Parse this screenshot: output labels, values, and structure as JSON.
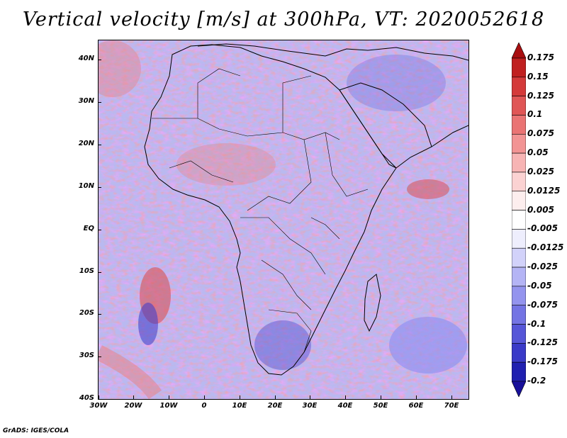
{
  "title": "Vertical velocity [m/s] at 300hPa, VT: 2020052618",
  "footer": "GrADS: IGES/COLA",
  "latitude_labels": [
    "40N",
    "30N",
    "20N",
    "10N",
    "EQ",
    "10S",
    "20S",
    "30S",
    "40S"
  ],
  "longitude_labels": [
    "30W",
    "20W",
    "10W",
    "0",
    "10E",
    "20E",
    "30E",
    "40E",
    "50E",
    "60E",
    "70E"
  ],
  "colorbar": {
    "levels": [
      "0.175",
      "0.15",
      "0.125",
      "0.1",
      "0.075",
      "0.05",
      "0.025",
      "0.0125",
      "0.005",
      "-0.005",
      "-0.0125",
      "-0.025",
      "-0.05",
      "-0.075",
      "-0.1",
      "-0.125",
      "-0.175",
      "-0.2"
    ],
    "colors": [
      "#a80e10",
      "#c02020",
      "#d43a3a",
      "#e05656",
      "#ea7474",
      "#f29494",
      "#f7b4b4",
      "#fbd2d2",
      "#fdeeee",
      "#ffffff",
      "#eeeefd",
      "#d2d2fa",
      "#b4b4f5",
      "#9494ee",
      "#7474e4",
      "#5656d8",
      "#3a3ac8",
      "#2020b0",
      "#18109a"
    ]
  },
  "chart_data": {
    "type": "heatmap",
    "title": "Vertical velocity [m/s] at 300hPa, VT: 2020052618",
    "variable": "Vertical velocity",
    "units": "m/s",
    "level": "300hPa",
    "valid_time": "2020052618",
    "xlim": [
      -30,
      75
    ],
    "ylim": [
      -40,
      45
    ],
    "x_ticks": [
      "30W",
      "20W",
      "10W",
      "0",
      "10E",
      "20E",
      "30E",
      "40E",
      "50E",
      "60E",
      "70E"
    ],
    "y_ticks": [
      "40N",
      "30N",
      "20N",
      "10N",
      "EQ",
      "10S",
      "20S",
      "30S",
      "40S"
    ],
    "contour_levels": [
      0.175,
      0.15,
      0.125,
      0.1,
      0.075,
      0.05,
      0.025,
      0.0125,
      0.005,
      -0.005,
      -0.0125,
      -0.025,
      -0.05,
      -0.075,
      -0.1,
      -0.125,
      -0.175,
      -0.2
    ]
  }
}
